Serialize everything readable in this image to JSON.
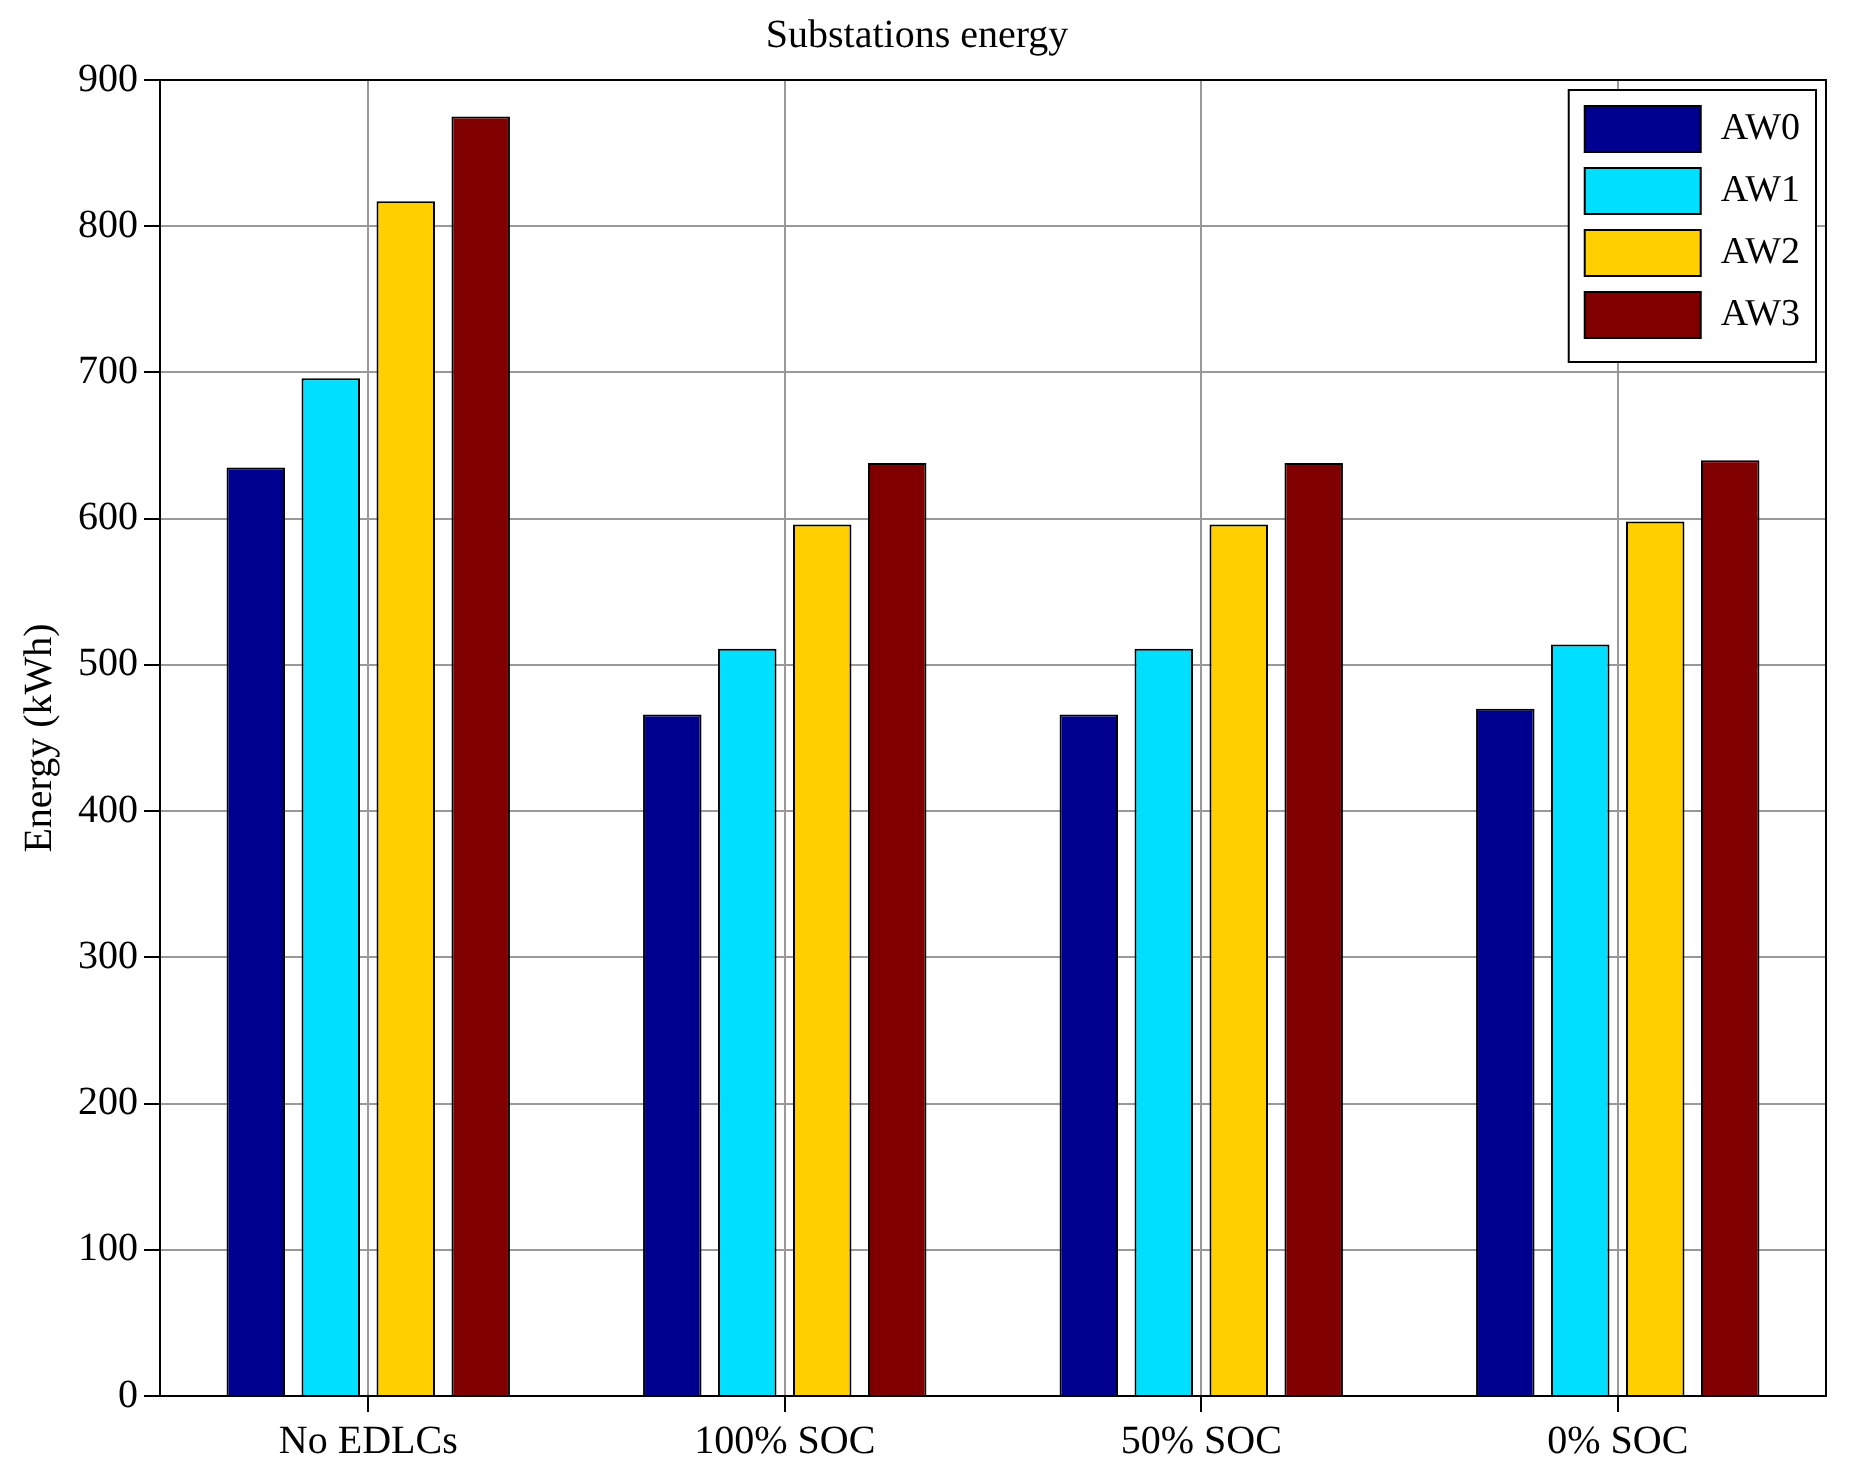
{
  "chart_data": {
    "type": "bar",
    "title": "Substations energy",
    "ylabel": "Energy (kWh)",
    "categories": [
      "No EDLCs",
      "100% SOC",
      "50% SOC",
      "0% SOC"
    ],
    "series": [
      {
        "name": "AW0",
        "color": "#00008f",
        "values": [
          635,
          466,
          466,
          470
        ]
      },
      {
        "name": "AW1",
        "color": "#00dfff",
        "values": [
          696,
          511,
          511,
          514
        ]
      },
      {
        "name": "AW2",
        "color": "#ffcf00",
        "values": [
          817,
          596,
          596,
          598
        ]
      },
      {
        "name": "AW3",
        "color": "#800000",
        "values": [
          875,
          638,
          638,
          640
        ]
      }
    ],
    "ylim": [
      0,
      900
    ],
    "yticks": [
      0,
      100,
      200,
      300,
      400,
      500,
      600,
      700,
      800,
      900
    ],
    "grid": true,
    "legend": "top right"
  }
}
